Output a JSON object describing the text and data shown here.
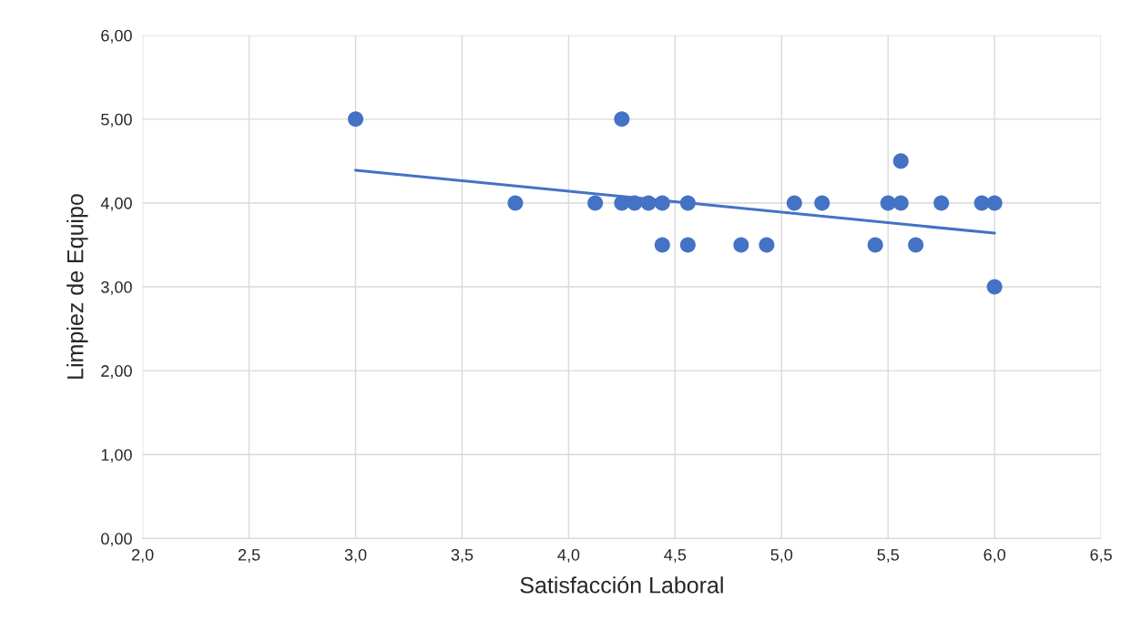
{
  "chart_data": {
    "type": "scatter",
    "xlabel": "Satisfacción Laboral",
    "ylabel": "Limpiez de Equipo",
    "series": [
      {
        "color": "#4472c4",
        "marker": "circle",
        "x": [
          3.0,
          3.75,
          4.125,
          4.25,
          4.25,
          4.31,
          4.375,
          4.44,
          4.44,
          4.56,
          4.56,
          4.81,
          4.93,
          5.06,
          5.19,
          5.44,
          5.5,
          5.56,
          5.56,
          5.63,
          5.75,
          5.94,
          6.0,
          6.0
        ],
        "values": [
          5,
          4,
          4,
          5,
          4,
          4,
          4,
          4,
          3.5,
          4,
          3.5,
          3.5,
          3.5,
          4,
          4,
          3.5,
          4,
          4.5,
          4,
          3.5,
          4,
          4,
          4,
          3
        ]
      },
      {
        "type": "line",
        "color": "#4472c4",
        "marker": "none",
        "line_style": "solid",
        "x": [
          3.0,
          6.0
        ],
        "values": [
          4.39,
          3.64
        ]
      }
    ],
    "xlim": [
      2.0,
      6.5
    ],
    "xticks": [
      {
        "value": 2.0,
        "label": "2,0"
      },
      {
        "value": 2.5,
        "label": "2,5"
      },
      {
        "value": 3.0,
        "label": "3,0"
      },
      {
        "value": 3.5,
        "label": "3,5"
      },
      {
        "value": 4.0,
        "label": "4,0"
      },
      {
        "value": 4.5,
        "label": "4,5"
      },
      {
        "value": 5.0,
        "label": "5,0"
      },
      {
        "value": 5.5,
        "label": "5,5"
      },
      {
        "value": 6.0,
        "label": "6,0"
      },
      {
        "value": 6.5,
        "label": "6,5"
      }
    ],
    "ylim": [
      0,
      6
    ],
    "yticks": [
      {
        "value": 0,
        "label": "0,00"
      },
      {
        "value": 1,
        "label": "1,00"
      },
      {
        "value": 2,
        "label": "2,00"
      },
      {
        "value": 3,
        "label": "3,00"
      },
      {
        "value": 4,
        "label": "4,00"
      },
      {
        "value": 5,
        "label": "5,00"
      },
      {
        "value": 6,
        "label": "6,00"
      }
    ],
    "grid": true,
    "legend": false
  }
}
